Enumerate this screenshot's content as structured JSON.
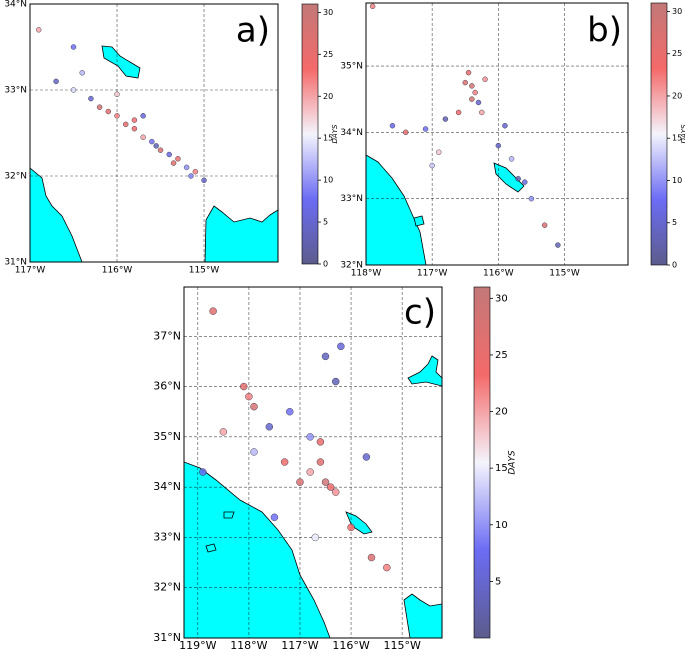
{
  "panels": [
    {
      "label": "a)",
      "xticks": [
        {
          "value": -117,
          "label": "117°W"
        },
        {
          "value": -116,
          "label": "116°W"
        },
        {
          "value": -115,
          "label": "115°W"
        }
      ],
      "yticks": [
        {
          "value": 31,
          "label": "31°N"
        },
        {
          "value": 32,
          "label": "32°N"
        },
        {
          "value": 33,
          "label": "33°N"
        },
        {
          "value": 34,
          "label": "34°N"
        }
      ],
      "xlim": [
        -117,
        -114.15
      ],
      "ylim": [
        31,
        34
      ],
      "colorbar": {
        "label": "DAYS",
        "lim": [
          0,
          31
        ],
        "ticks": [
          0,
          5,
          10,
          15,
          20,
          25,
          30
        ]
      },
      "points": {
        "lon": [
          -116.5,
          -116.4,
          -116.3,
          -116.2,
          -116.1,
          -116.0,
          -115.9,
          -115.8,
          -115.7,
          -115.6,
          -115.5,
          -115.4,
          -115.3,
          -115.2,
          -115.1,
          -115.0,
          -116.7,
          -116.5,
          -115.8,
          -115.55,
          -115.35,
          -115.15,
          -116.0,
          -115.7,
          -116.9
        ],
        "lat": [
          33.5,
          33.2,
          32.9,
          32.8,
          32.75,
          32.7,
          32.6,
          32.55,
          32.45,
          32.4,
          32.3,
          32.25,
          32.2,
          32.1,
          32.05,
          31.95,
          33.1,
          33.0,
          32.65,
          32.35,
          32.15,
          32.0,
          32.95,
          32.7,
          33.7
        ],
        "days": [
          8,
          12,
          5,
          28,
          25,
          22,
          26,
          24,
          20,
          8,
          27,
          6,
          25,
          10,
          22,
          5,
          4,
          14,
          23,
          3,
          26,
          9,
          18,
          6,
          20
        ]
      }
    },
    {
      "label": "b)",
      "xticks": [
        {
          "value": -118,
          "label": "118°W"
        },
        {
          "value": -117,
          "label": "117°W"
        },
        {
          "value": -116,
          "label": "116°W"
        },
        {
          "value": -115,
          "label": "115°W"
        }
      ],
      "yticks": [
        {
          "value": 32,
          "label": "32°N"
        },
        {
          "value": 33,
          "label": "33°N"
        },
        {
          "value": 34,
          "label": "34°N"
        },
        {
          "value": 35,
          "label": "35°N"
        }
      ],
      "xlim": [
        -118,
        -114.04
      ],
      "ylim": [
        32,
        35.95
      ],
      "colorbar": {
        "label": "DAYS",
        "lim": [
          0,
          31
        ],
        "ticks": [
          0,
          5,
          10,
          15,
          20,
          25,
          30
        ]
      },
      "points": {
        "lon": [
          -116.45,
          -116.4,
          -116.35,
          -116.3,
          -116.5,
          -116.25,
          -116.8,
          -117.1,
          -117.4,
          -117.9,
          -116.0,
          -115.8,
          -115.7,
          -115.6,
          -115.5,
          -115.3,
          -115.1,
          -116.6,
          -116.9,
          -117.6,
          -116.2,
          -115.9,
          -117.0,
          -116.4
        ],
        "lat": [
          34.9,
          34.7,
          34.6,
          34.45,
          34.75,
          34.3,
          34.2,
          34.05,
          34.0,
          35.9,
          33.8,
          33.6,
          33.3,
          33.25,
          33.0,
          32.6,
          32.3,
          34.3,
          33.7,
          34.1,
          34.8,
          34.1,
          33.5,
          34.5
        ],
        "days": [
          25,
          28,
          22,
          5,
          27,
          20,
          3,
          8,
          26,
          22,
          4,
          12,
          2,
          6,
          10,
          27,
          3,
          24,
          18,
          7,
          21,
          5,
          13,
          29
        ]
      }
    },
    {
      "label": "c)",
      "xticks": [
        {
          "value": -119,
          "label": "119°W"
        },
        {
          "value": -118,
          "label": "118°W"
        },
        {
          "value": -117,
          "label": "117°W"
        },
        {
          "value": -116,
          "label": "116°W"
        },
        {
          "value": -115,
          "label": "115°W"
        }
      ],
      "yticks": [
        {
          "value": 31,
          "label": "31°N"
        },
        {
          "value": 32,
          "label": "32°N"
        },
        {
          "value": 33,
          "label": "33°N"
        },
        {
          "value": 34,
          "label": "34°N"
        },
        {
          "value": 35,
          "label": "35°N"
        },
        {
          "value": 36,
          "label": "36°N"
        },
        {
          "value": 37,
          "label": "37°N"
        }
      ],
      "xlim": [
        -119.27,
        -114.22
      ],
      "ylim": [
        31,
        37.98
      ],
      "colorbar": {
        "label": "DAYS",
        "lim": [
          0,
          31
        ],
        "ticks": [
          5,
          10,
          15,
          20,
          25,
          30
        ]
      },
      "points": {
        "lon": [
          -118.1,
          -118.0,
          -117.9,
          -117.6,
          -117.3,
          -117.0,
          -116.8,
          -116.6,
          -116.5,
          -116.4,
          -116.3,
          -116.6,
          -116.8,
          -117.2,
          -116.5,
          -116.2,
          -115.6,
          -115.3,
          -118.7,
          -118.5,
          -118.9,
          -117.5,
          -116.7,
          -116.3,
          -117.9,
          -116.0,
          -115.7
        ],
        "lat": [
          36.0,
          35.8,
          35.6,
          35.2,
          34.5,
          34.1,
          34.3,
          34.5,
          34.1,
          34.0,
          33.9,
          34.9,
          35.0,
          35.5,
          36.6,
          36.8,
          32.6,
          32.4,
          37.5,
          35.1,
          34.3,
          33.4,
          33.0,
          36.1,
          34.7,
          33.2,
          34.6
        ],
        "days": [
          26,
          22,
          28,
          5,
          24,
          27,
          20,
          26,
          29,
          24,
          21,
          25,
          10,
          8,
          4,
          6,
          27,
          22,
          26,
          20,
          7,
          8,
          15,
          3,
          12,
          24,
          5
        ]
      }
    }
  ]
}
